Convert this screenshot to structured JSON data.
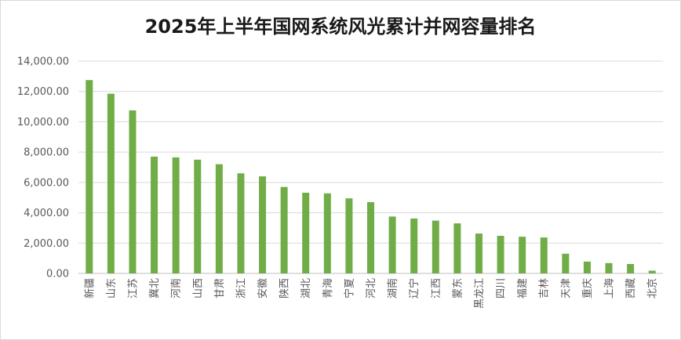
{
  "chart_data": {
    "type": "bar",
    "title": "2025年上半年国网系统风光累计并网容量排名",
    "xlabel": "",
    "ylabel": "",
    "ylim": [
      0,
      14000
    ],
    "yticks": [
      "0.00",
      "2,000.00",
      "4,000.00",
      "6,000.00",
      "8,000.00",
      "10,000.00",
      "12,000.00",
      "14,000.00"
    ],
    "grid": true,
    "legend": "none",
    "bar_color": "#70ad47",
    "categories": [
      "新疆",
      "山东",
      "江苏",
      "冀北",
      "河南",
      "山西",
      "甘肃",
      "浙江",
      "安徽",
      "陕西",
      "湖北",
      "青海",
      "宁夏",
      "河北",
      "湖南",
      "辽宁",
      "江西",
      "蒙东",
      "黑龙江",
      "四川",
      "福建",
      "吉林",
      "天津",
      "重庆",
      "上海",
      "西藏",
      "北京"
    ],
    "values": [
      12750,
      11850,
      10750,
      7700,
      7650,
      7500,
      7200,
      6600,
      6400,
      5700,
      5320,
      5280,
      4950,
      4700,
      3750,
      3620,
      3480,
      3300,
      2630,
      2480,
      2420,
      2370,
      1300,
      780,
      680,
      620,
      180
    ]
  }
}
